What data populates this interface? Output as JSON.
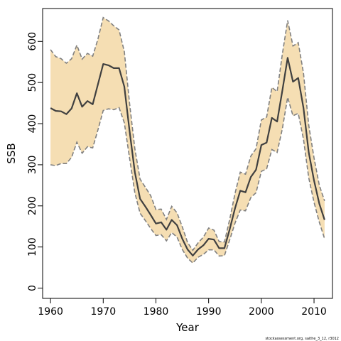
{
  "chart_data": {
    "type": "line",
    "xlabel": "Year",
    "ylabel": "SSB",
    "xlim": [
      1958.5,
      2013.5
    ],
    "ylim": [
      -25,
      680
    ],
    "xticks": [
      1960,
      1970,
      1980,
      1990,
      2000,
      2010
    ],
    "yticks": [
      0,
      100,
      200,
      300,
      400,
      500,
      600
    ],
    "grid": false,
    "colors": {
      "band_fill": "#f5deb3",
      "band_edge": "#808080",
      "line": "#404040",
      "axes": "#000000"
    },
    "x": [
      1960,
      1961,
      1962,
      1963,
      1964,
      1965,
      1966,
      1967,
      1968,
      1969,
      1970,
      1971,
      1972,
      1973,
      1974,
      1975,
      1976,
      1977,
      1978,
      1979,
      1980,
      1981,
      1982,
      1983,
      1984,
      1985,
      1986,
      1987,
      1988,
      1989,
      1990,
      1991,
      1992,
      1993,
      1994,
      1995,
      1996,
      1997,
      1998,
      1999,
      2000,
      2001,
      2002,
      2003,
      2004,
      2005,
      2006,
      2007,
      2008,
      2009,
      2010,
      2011,
      2012
    ],
    "series": [
      {
        "role": "estimate",
        "values": [
          438,
          431,
          430,
          423,
          437,
          474,
          441,
          455,
          447,
          496,
          545,
          542,
          535,
          535,
          490,
          382,
          282,
          217,
          198,
          178,
          157,
          160,
          142,
          166,
          153,
          120,
          94,
          79,
          94,
          104,
          120,
          118,
          97,
          97,
          143,
          194,
          237,
          233,
          270,
          288,
          348,
          354,
          414,
          405,
          481,
          560,
          502,
          511,
          438,
          330,
          262,
          205,
          166
        ]
      },
      {
        "role": "upper",
        "values": [
          580,
          563,
          558,
          547,
          558,
          591,
          557,
          571,
          564,
          606,
          658,
          650,
          638,
          628,
          575,
          449,
          339,
          265,
          245,
          225,
          191,
          192,
          167,
          199,
          183,
          149,
          111,
          92,
          110,
          124,
          146,
          141,
          113,
          112,
          167,
          230,
          282,
          277,
          321,
          339,
          409,
          416,
          488,
          478,
          570,
          651,
          589,
          597,
          523,
          396,
          317,
          250,
          212
        ]
      },
      {
        "role": "lower",
        "values": [
          300,
          298,
          303,
          303,
          318,
          355,
          328,
          344,
          341,
          385,
          432,
          436,
          434,
          439,
          402,
          316,
          232,
          182,
          164,
          145,
          128,
          130,
          115,
          135,
          124,
          94,
          73,
          61,
          75,
          82,
          93,
          93,
          78,
          79,
          117,
          158,
          190,
          188,
          220,
          232,
          284,
          290,
          337,
          330,
          388,
          464,
          419,
          425,
          362,
          268,
          209,
          160,
          120
        ]
      }
    ]
  },
  "footer": {
    "credit": "stockassessment.org, saithe_3_12, r3012"
  }
}
